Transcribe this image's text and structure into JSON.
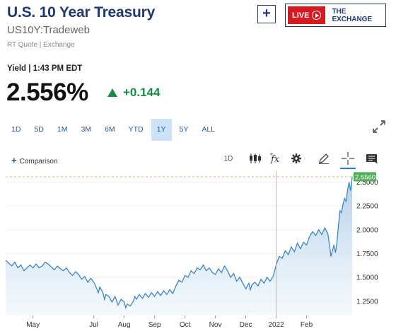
{
  "header": {
    "title": "U.S. 10 Year Treasury",
    "subtitle": "US10Y:Tradeweb",
    "meta": "RT Quote | Exchange",
    "add_label": "+",
    "live_label": "LIVE",
    "exchange_label": "THE EXCHANGE"
  },
  "quote": {
    "yield_label": "Yield | 1:43 PM EDT",
    "price": "2.556%",
    "change": "+0.144"
  },
  "ranges": [
    "1D",
    "5D",
    "1M",
    "3M",
    "6M",
    "YTD",
    "1Y",
    "5Y",
    "ALL"
  ],
  "active_range": "1Y",
  "toolbar": {
    "comparison_label": "Comparison",
    "interval_label": "1D",
    "icons": [
      "candlestick-icon",
      "fx-icon",
      "gear-icon",
      "pencil-icon",
      "crosshair-icon",
      "news-icon"
    ]
  },
  "colors": {
    "brand_blue": "#1f3a6e",
    "accent_blue": "#1f5aa6",
    "up_green": "#1a8c4a",
    "live_red": "#d71920",
    "line": "#3d86c6"
  },
  "chart_data": {
    "type": "area",
    "ylim": [
      1.1,
      2.6
    ],
    "yticks": [
      "2.5000",
      "2.2500",
      "2.0000",
      "1.7500",
      "1.5000",
      "1.2500"
    ],
    "ytick_values": [
      2.5,
      2.25,
      2.0,
      1.75,
      1.5,
      1.25
    ],
    "xticks": [
      "May",
      "Jul",
      "Aug",
      "Sep",
      "Oct",
      "Nov",
      "Dec",
      "2022",
      "Feb"
    ],
    "xtick_positions": [
      1.0,
      3.0,
      4.0,
      5.0,
      6.0,
      7.0,
      8.0,
      9.0,
      10.0
    ],
    "xlim": [
      0.1,
      11.5
    ],
    "last_value_label": "2.5560",
    "last_value": 2.556,
    "series": [
      {
        "values": [
          [
            0.1,
            1.68
          ],
          [
            0.2,
            1.65
          ],
          [
            0.3,
            1.62
          ],
          [
            0.4,
            1.66
          ],
          [
            0.5,
            1.6
          ],
          [
            0.6,
            1.63
          ],
          [
            0.7,
            1.57
          ],
          [
            0.8,
            1.6
          ],
          [
            0.9,
            1.63
          ],
          [
            1.0,
            1.6
          ],
          [
            1.1,
            1.64
          ],
          [
            1.2,
            1.6
          ],
          [
            1.3,
            1.62
          ],
          [
            1.4,
            1.66
          ],
          [
            1.5,
            1.64
          ],
          [
            1.6,
            1.61
          ],
          [
            1.7,
            1.58
          ],
          [
            1.8,
            1.62
          ],
          [
            1.9,
            1.59
          ],
          [
            2.0,
            1.57
          ],
          [
            2.1,
            1.6
          ],
          [
            2.2,
            1.55
          ],
          [
            2.3,
            1.52
          ],
          [
            2.4,
            1.56
          ],
          [
            2.5,
            1.53
          ],
          [
            2.6,
            1.48
          ],
          [
            2.7,
            1.51
          ],
          [
            2.8,
            1.45
          ],
          [
            2.9,
            1.49
          ],
          [
            3.0,
            1.45
          ],
          [
            3.1,
            1.38
          ],
          [
            3.15,
            1.34
          ],
          [
            3.2,
            1.4
          ],
          [
            3.3,
            1.34
          ],
          [
            3.35,
            1.27
          ],
          [
            3.4,
            1.32
          ],
          [
            3.5,
            1.3
          ],
          [
            3.6,
            1.24
          ],
          [
            3.7,
            1.3
          ],
          [
            3.8,
            1.21
          ],
          [
            3.9,
            1.27
          ],
          [
            4.0,
            1.24
          ],
          [
            4.05,
            1.18
          ],
          [
            4.1,
            1.22
          ],
          [
            4.2,
            1.2
          ],
          [
            4.3,
            1.25
          ],
          [
            4.35,
            1.3
          ],
          [
            4.4,
            1.27
          ],
          [
            4.5,
            1.32
          ],
          [
            4.6,
            1.28
          ],
          [
            4.7,
            1.33
          ],
          [
            4.8,
            1.29
          ],
          [
            4.9,
            1.34
          ],
          [
            5.0,
            1.3
          ],
          [
            5.1,
            1.35
          ],
          [
            5.2,
            1.31
          ],
          [
            5.3,
            1.36
          ],
          [
            5.4,
            1.32
          ],
          [
            5.5,
            1.37
          ],
          [
            5.6,
            1.33
          ],
          [
            5.7,
            1.41
          ],
          [
            5.8,
            1.47
          ],
          [
            5.9,
            1.45
          ],
          [
            6.0,
            1.52
          ],
          [
            6.1,
            1.5
          ],
          [
            6.2,
            1.57
          ],
          [
            6.3,
            1.54
          ],
          [
            6.4,
            1.6
          ],
          [
            6.5,
            1.58
          ],
          [
            6.6,
            1.63
          ],
          [
            6.7,
            1.57
          ],
          [
            6.8,
            1.6
          ],
          [
            6.9,
            1.55
          ],
          [
            7.0,
            1.53
          ],
          [
            7.1,
            1.59
          ],
          [
            7.2,
            1.55
          ],
          [
            7.3,
            1.62
          ],
          [
            7.4,
            1.57
          ],
          [
            7.5,
            1.5
          ],
          [
            7.6,
            1.54
          ],
          [
            7.7,
            1.46
          ],
          [
            7.8,
            1.5
          ],
          [
            7.9,
            1.44
          ],
          [
            8.0,
            1.38
          ],
          [
            8.1,
            1.44
          ],
          [
            8.15,
            1.37
          ],
          [
            8.2,
            1.42
          ],
          [
            8.3,
            1.45
          ],
          [
            8.4,
            1.41
          ],
          [
            8.5,
            1.48
          ],
          [
            8.6,
            1.44
          ],
          [
            8.7,
            1.5
          ],
          [
            8.8,
            1.46
          ],
          [
            8.9,
            1.51
          ],
          [
            9.0,
            1.63
          ],
          [
            9.1,
            1.72
          ],
          [
            9.2,
            1.7
          ],
          [
            9.3,
            1.78
          ],
          [
            9.4,
            1.74
          ],
          [
            9.5,
            1.82
          ],
          [
            9.6,
            1.77
          ],
          [
            9.7,
            1.86
          ],
          [
            9.8,
            1.8
          ],
          [
            9.9,
            1.87
          ],
          [
            10.0,
            1.84
          ],
          [
            10.1,
            1.93
          ],
          [
            10.2,
            1.98
          ],
          [
            10.3,
            1.94
          ],
          [
            10.4,
            2.0
          ],
          [
            10.5,
            1.95
          ],
          [
            10.6,
            2.02
          ],
          [
            10.7,
            1.96
          ],
          [
            10.75,
            1.85
          ],
          [
            10.8,
            1.72
          ],
          [
            10.85,
            1.78
          ],
          [
            10.9,
            1.84
          ],
          [
            10.95,
            1.76
          ],
          [
            11.0,
            1.87
          ],
          [
            11.05,
            2.05
          ],
          [
            11.1,
            2.2
          ],
          [
            11.15,
            2.18
          ],
          [
            11.2,
            2.27
          ],
          [
            11.25,
            2.33
          ],
          [
            11.3,
            2.3
          ],
          [
            11.35,
            2.42
          ],
          [
            11.4,
            2.5
          ],
          [
            11.45,
            2.41
          ],
          [
            11.5,
            2.556
          ]
        ]
      }
    ]
  }
}
